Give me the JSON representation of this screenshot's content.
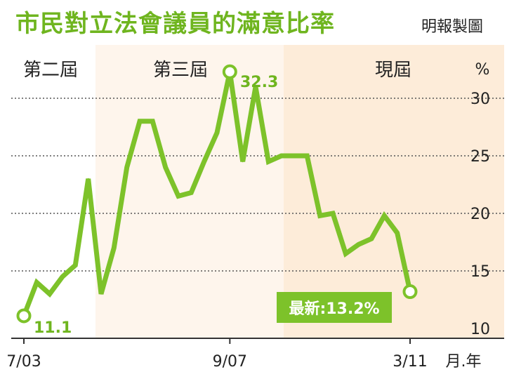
{
  "header": {
    "title": "市民對立法會議員的滿意比率",
    "credit": "明報製圖"
  },
  "chart_data": {
    "type": "line",
    "title": "市民對立法會議員的滿意比率",
    "ylabel": "%",
    "xlabel": "月.年",
    "ylim": [
      10,
      33
    ],
    "yticks": [
      10,
      15,
      20,
      25,
      30
    ],
    "grid": "horizontal-dotted",
    "x_tick_labels": [
      "7/03",
      "9/07",
      "3/11"
    ],
    "terms": [
      {
        "label": "第二屆",
        "shade": "#ffffff"
      },
      {
        "label": "第三屆",
        "shade": "#fef5ec"
      },
      {
        "label": "現屆",
        "shade": "#fdecd9"
      }
    ],
    "series": [
      {
        "color": "#7dc22a",
        "values": [
          11.1,
          14.0,
          13.0,
          14.5,
          15.5,
          23.0,
          13.0,
          17.0,
          24.0,
          28.0,
          28.0,
          24.0,
          21.5,
          21.8,
          24.5,
          27.0,
          32.3,
          24.5,
          31.0,
          24.5,
          25.0,
          25.0,
          25.0,
          19.8,
          20.0,
          16.5,
          17.3,
          17.8,
          19.8,
          18.3,
          13.2
        ]
      }
    ],
    "annotations": [
      {
        "label": "11.1"
      },
      {
        "label": "32.3"
      },
      {
        "label": "最新:13.2%"
      }
    ]
  }
}
